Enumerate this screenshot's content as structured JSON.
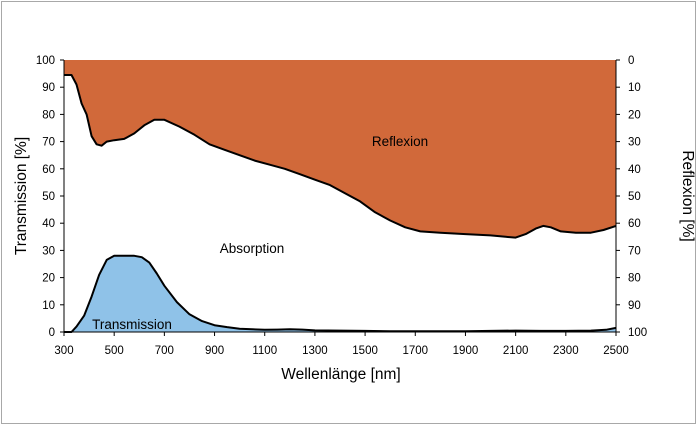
{
  "chart_data": {
    "type": "area",
    "xlabel": "Wellenlänge [nm]",
    "ylabel": "Transmission [%]",
    "y2label": "Reflexion [%]",
    "xlim": [
      300,
      2500
    ],
    "ylim": [
      0,
      100
    ],
    "y2lim": [
      100,
      0
    ],
    "x_ticks": [
      "300",
      "500",
      "700",
      "900",
      "1100",
      "1300",
      "1500",
      "1700",
      "1900",
      "2100",
      "2300",
      "2500"
    ],
    "y_ticks": [
      "0",
      "10",
      "20",
      "30",
      "40",
      "50",
      "60",
      "70",
      "80",
      "90",
      "100"
    ],
    "y2_ticks": [
      "100",
      "90",
      "80",
      "70",
      "60",
      "50",
      "40",
      "30",
      "20",
      "10",
      "0"
    ],
    "region_labels": {
      "reflexion": "Reflexion",
      "absorption": "Absorption",
      "transmission": "Transmission"
    },
    "colors": {
      "reflexion": "#d1693a",
      "transmission": "#8fc2e8",
      "line": "#000000"
    },
    "series": [
      {
        "name": "Reflexion",
        "x": [
          300,
          330,
          350,
          370,
          390,
          410,
          430,
          450,
          470,
          500,
          540,
          580,
          620,
          660,
          700,
          760,
          820,
          880,
          940,
          1000,
          1060,
          1120,
          1180,
          1240,
          1300,
          1360,
          1420,
          1480,
          1540,
          1600,
          1660,
          1720,
          1800,
          1900,
          2000,
          2060,
          2100,
          2140,
          2180,
          2210,
          2240,
          2280,
          2340,
          2400,
          2450,
          2500
        ],
        "values": [
          5.5,
          5.5,
          9,
          16,
          20,
          28,
          31,
          31.5,
          30,
          29.5,
          29,
          27,
          24,
          22,
          22,
          24.5,
          27.5,
          31,
          33,
          35,
          37,
          38.5,
          40,
          42,
          44,
          46,
          49,
          52,
          56,
          59,
          61.5,
          63,
          63.5,
          64,
          64.5,
          65,
          65.3,
          64,
          62,
          61,
          61.5,
          63,
          63.5,
          63.5,
          62.5,
          61
        ]
      },
      {
        "name": "Transmission",
        "x": [
          300,
          330,
          350,
          380,
          410,
          440,
          470,
          500,
          540,
          580,
          610,
          640,
          670,
          700,
          750,
          800,
          850,
          900,
          950,
          1000,
          1050,
          1100,
          1150,
          1200,
          1250,
          1300,
          1400,
          1500,
          1600,
          1700,
          1800,
          1900,
          2000,
          2100,
          2200,
          2300,
          2400,
          2460,
          2500
        ],
        "values": [
          0,
          0,
          2,
          6,
          13,
          21,
          26.5,
          28,
          28,
          28,
          27.5,
          25.5,
          21.5,
          17,
          11,
          6.5,
          4,
          2.5,
          1.8,
          1.2,
          1.0,
          0.8,
          0.9,
          1.0,
          0.9,
          0.6,
          0.5,
          0.4,
          0.3,
          0.3,
          0.3,
          0.3,
          0.4,
          0.5,
          0.4,
          0.4,
          0.5,
          0.8,
          1.5
        ]
      }
    ],
    "grid": false,
    "legend": "none"
  }
}
